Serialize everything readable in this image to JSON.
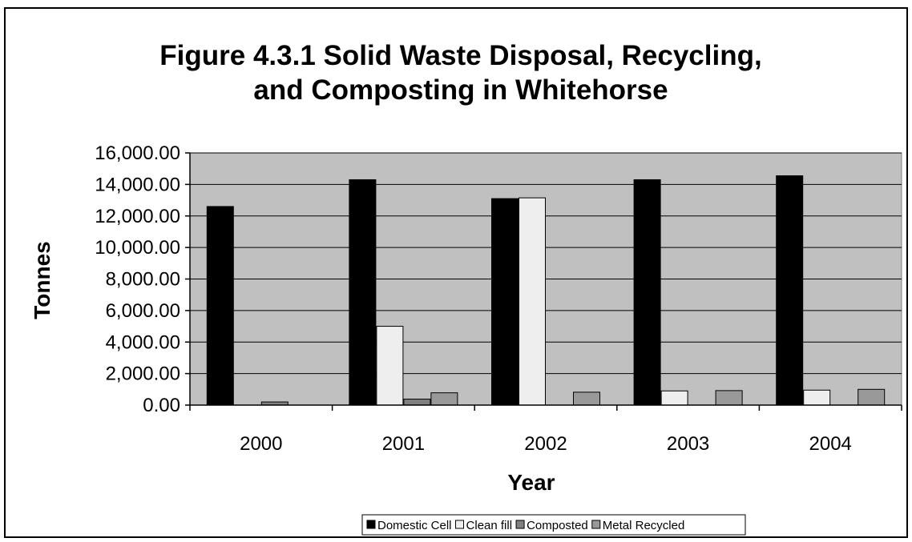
{
  "chart_data": {
    "type": "bar",
    "title_lines": [
      "Figure 4.3.1  Solid Waste Disposal, Recycling,",
      "and Composting in Whitehorse"
    ],
    "xlabel": "Year",
    "ylabel": "Tonnes",
    "categories": [
      "2000",
      "2001",
      "2002",
      "2003",
      "2004"
    ],
    "ylim": [
      0,
      16000
    ],
    "yticks": [
      0,
      2000,
      4000,
      6000,
      8000,
      10000,
      12000,
      14000,
      16000
    ],
    "ytick_labels": [
      "0.00",
      "2,000.00",
      "4,000.00",
      "6,000.00",
      "8,000.00",
      "10,000.00",
      "12,000.00",
      "14,000.00",
      "16,000.00"
    ],
    "grid": true,
    "plot_background": "#C0C0C0",
    "legend_position": "bottom",
    "series": [
      {
        "name": "Domestic Cell",
        "color": "#000000",
        "values": [
          12600,
          14300,
          13100,
          14300,
          14550
        ]
      },
      {
        "name": "Clean fill",
        "color": "#EEEEEE",
        "values": [
          0,
          5000,
          13150,
          900,
          950
        ]
      },
      {
        "name": "Composted",
        "color": "#808080",
        "values": [
          200,
          380,
          0,
          0,
          0
        ]
      },
      {
        "name": "Metal Recycled",
        "color": "#999999",
        "values": [
          0,
          780,
          820,
          920,
          1000
        ]
      }
    ]
  }
}
